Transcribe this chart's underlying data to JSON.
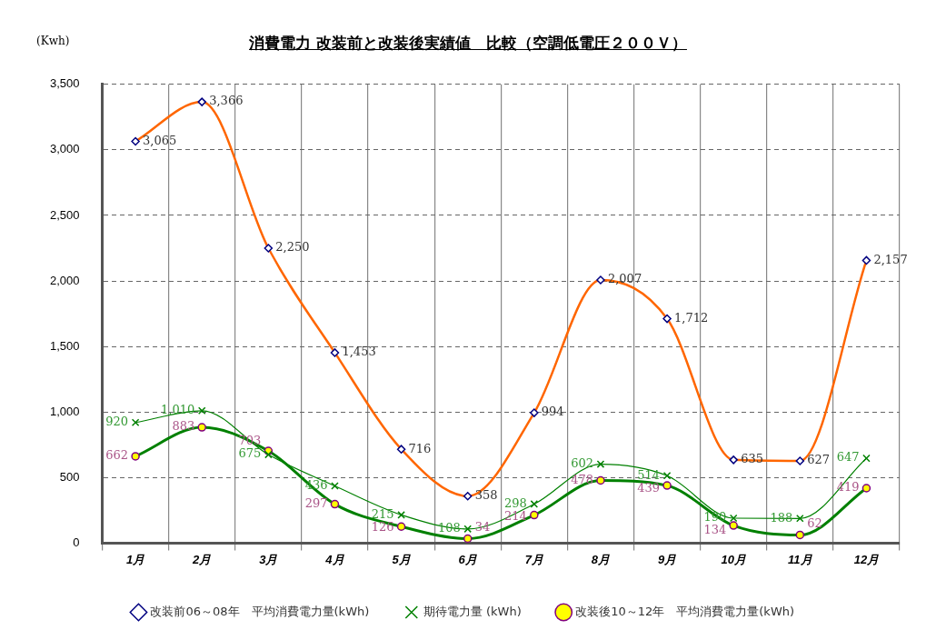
{
  "chart_data": {
    "type": "line",
    "title": "消費電力 改装前と改装後実績値　比較（空調低電圧２００Ｖ）",
    "ylabel": "(Kwh)",
    "categories": [
      "1月",
      "2月",
      "3月",
      "4月",
      "5月",
      "6月",
      "7月",
      "8月",
      "9月",
      "10月",
      "11月",
      "12月"
    ],
    "series": [
      {
        "name": "改装前06～08年　平均消費電力量(kWh)",
        "color": "#ff6600",
        "marker": "diamond",
        "values": [
          3065,
          3366,
          2250,
          1453,
          716,
          358,
          994,
          2007,
          1712,
          635,
          627,
          2157
        ],
        "value_labels": [
          "3,065",
          "3,366",
          "2,250",
          "1,453",
          "716",
          "358",
          "994",
          "2,007",
          "1,712",
          "635",
          "627",
          "2,157"
        ]
      },
      {
        "name": "期待電力量 (kWh)",
        "color": "#008000",
        "marker": "cross",
        "values": [
          920,
          1010,
          675,
          436,
          215,
          108,
          298,
          602,
          514,
          190,
          188,
          647
        ],
        "value_labels": [
          "920",
          "1,010",
          "675",
          "436",
          "215",
          "108",
          "298",
          "602",
          "514",
          "190",
          "188",
          "647"
        ]
      },
      {
        "name": "改装後10～12年　平均消費電力量(kWh)",
        "color": "#008000",
        "marker": "circle",
        "values": [
          662,
          883,
          703,
          297,
          126,
          34,
          214,
          478,
          439,
          134,
          62,
          419
        ],
        "value_labels": [
          "662",
          "883",
          "703",
          "297",
          "126",
          "34",
          "214",
          "478",
          "439",
          "134",
          "62",
          "419"
        ]
      }
    ],
    "ylim": [
      0,
      3500
    ],
    "yticks": [
      0,
      {
        "value": 500,
        "label": "500"
      },
      {
        "value": 1000,
        "label": "1,000"
      },
      {
        "value": 1500,
        "label": "1,500"
      },
      {
        "value": 2000,
        "label": "2,000"
      },
      {
        "value": 2500,
        "label": "2,500"
      },
      {
        "value": 3000,
        "label": "3,000"
      },
      {
        "value": 3500,
        "label": "3,500"
      }
    ],
    "grid": true,
    "legend": "bottom"
  }
}
